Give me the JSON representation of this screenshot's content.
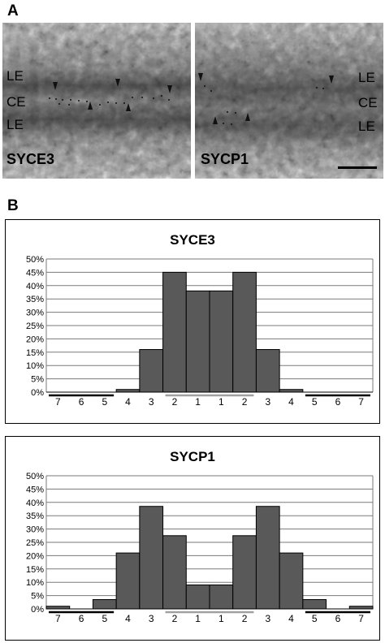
{
  "panel_a": {
    "letter": "A",
    "left_image": {
      "name": "SYCE3",
      "labels": [
        "LE",
        "CE",
        "LE"
      ]
    },
    "right_image": {
      "name": "SYCP1",
      "labels": [
        "LE",
        "CE",
        "LE"
      ]
    }
  },
  "panel_b": {
    "letter": "B"
  },
  "chart_data": [
    {
      "type": "bar",
      "title": "SYCE3",
      "categories": [
        "7",
        "6",
        "5",
        "4",
        "3",
        "2",
        "1",
        "1",
        "2",
        "3",
        "4",
        "5",
        "6",
        "7"
      ],
      "values": [
        0,
        0,
        0,
        1,
        16,
        45,
        38,
        38,
        45,
        16,
        1,
        0,
        0,
        0
      ],
      "ylim": [
        0,
        50
      ],
      "yticks": [
        "0%",
        "5%",
        "10%",
        "15%",
        "20%",
        "25%",
        "30%",
        "35%",
        "40%",
        "45%",
        "50%"
      ],
      "grid": true,
      "bar_color": "#595959"
    },
    {
      "type": "bar",
      "title": "SYCP1",
      "categories": [
        "7",
        "6",
        "5",
        "4",
        "3",
        "2",
        "1",
        "1",
        "2",
        "3",
        "4",
        "5",
        "6",
        "7"
      ],
      "values": [
        1,
        0,
        3.5,
        21,
        38.5,
        27.5,
        9,
        9,
        27.5,
        38.5,
        21,
        3.5,
        0,
        1
      ],
      "ylim": [
        0,
        50
      ],
      "yticks": [
        "0%",
        "5%",
        "10%",
        "15%",
        "20%",
        "25%",
        "30%",
        "35%",
        "40%",
        "45%",
        "50%"
      ],
      "grid": true,
      "bar_color": "#595959"
    }
  ]
}
